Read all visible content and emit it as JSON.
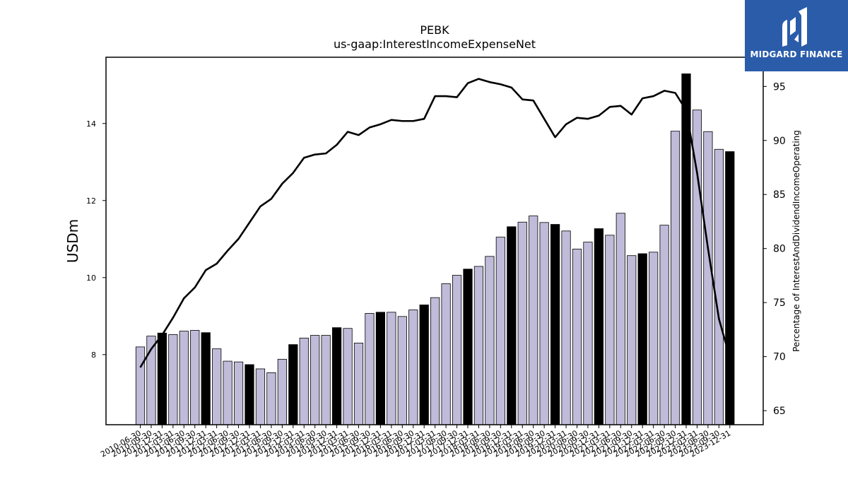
{
  "brand": {
    "name": "MIDGARD FINANCE",
    "color": "#2a5caa",
    "icon": "midgard-logo-icon"
  },
  "chart_data": {
    "type": "bar",
    "title": "PEBK",
    "subtitle": "us-gaap:InterestIncomeExpenseNet",
    "ylabel": "USDm",
    "y2label": "Percentage of InterestAndDividendIncomeOperating",
    "ylim": [
      6.18,
      15.72
    ],
    "y2lim": [
      63.7,
      97.7
    ],
    "yticks": [
      8,
      10,
      12,
      14
    ],
    "y2ticks": [
      65,
      70,
      75,
      80,
      85,
      90,
      95
    ],
    "bar_color": "#bfbbd9",
    "highlight_color": "#000000",
    "line_color": "#000000",
    "categories": [
      "2010-06-30",
      "2010-09-30",
      "2010-12-31",
      "2011-03-31",
      "2011-06-30",
      "2011-09-30",
      "2011-12-31",
      "2012-03-31",
      "2012-06-30",
      "2012-09-30",
      "2012-12-31",
      "2013-03-31",
      "2013-06-30",
      "2013-09-30",
      "2013-12-31",
      "2014-03-31",
      "2014-06-30",
      "2014-09-30",
      "2014-12-31",
      "2015-03-31",
      "2015-06-30",
      "2015-09-30",
      "2015-12-31",
      "2016-03-31",
      "2016-06-30",
      "2016-09-30",
      "2016-12-31",
      "2017-03-31",
      "2017-06-30",
      "2017-09-30",
      "2017-12-31",
      "2018-03-31",
      "2018-06-30",
      "2018-09-30",
      "2018-12-31",
      "2019-03-31",
      "2019-06-30",
      "2019-09-30",
      "2019-12-31",
      "2020-03-31",
      "2020-06-30",
      "2020-09-30",
      "2020-12-31",
      "2021-03-31",
      "2021-06-30",
      "2021-09-30",
      "2021-12-31",
      "2022-03-31",
      "2022-06-30",
      "2022-09-30",
      "2022-12-31",
      "2023-03-31",
      "2023-06-30",
      "2023-09-30",
      "2023-12-31"
    ],
    "series": [
      {
        "type": "bar",
        "values": [
          8.2,
          8.48,
          8.56,
          8.52,
          8.61,
          8.63,
          8.57,
          8.15,
          7.83,
          7.81,
          7.74,
          7.63,
          7.53,
          7.88,
          8.26,
          8.43,
          8.5,
          8.5,
          8.7,
          8.68,
          8.3,
          9.07,
          9.1,
          9.1,
          8.99,
          9.16,
          9.29,
          9.48,
          9.84,
          10.06,
          10.22,
          10.29,
          10.55,
          11.05,
          11.32,
          11.44,
          11.6,
          11.43,
          11.38,
          11.21,
          10.74,
          10.92,
          11.27,
          11.1,
          11.67,
          10.57,
          10.62,
          10.66,
          11.36,
          13.8,
          15.29,
          14.35,
          13.79,
          13.33,
          13.27
        ],
        "highlight": [
          2,
          6,
          10,
          14,
          18,
          22,
          26,
          30,
          34,
          38,
          42,
          46,
          50,
          54
        ]
      },
      {
        "type": "line",
        "axis": "right",
        "values": [
          69.0,
          70.7,
          72.0,
          73.6,
          75.4,
          76.4,
          78.0,
          78.6,
          79.8,
          80.9,
          82.4,
          83.9,
          84.6,
          86.0,
          87.0,
          88.4,
          88.7,
          88.8,
          89.6,
          90.8,
          90.5,
          91.2,
          91.5,
          91.9,
          91.8,
          91.8,
          92.0,
          94.1,
          94.1,
          94.0,
          95.3,
          95.7,
          95.4,
          95.2,
          94.9,
          93.8,
          93.7,
          92.0,
          90.3,
          91.5,
          92.1,
          92.0,
          92.3,
          93.1,
          93.2,
          92.4,
          93.9,
          94.1,
          94.6,
          94.4,
          92.8,
          87.0,
          80.0,
          73.5,
          69.9
        ]
      }
    ]
  }
}
